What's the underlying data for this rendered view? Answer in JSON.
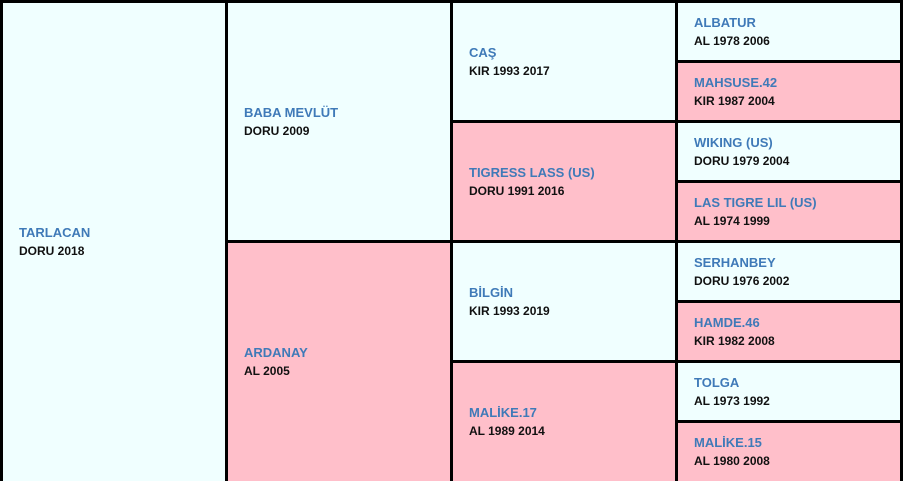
{
  "horse": {
    "name": "TARLACAN",
    "info": "DORU 2018"
  },
  "parents": [
    {
      "name": "BABA MEVLÜT",
      "info": "DORU 2009"
    },
    {
      "name": "ARDANAY",
      "info": "AL 2005"
    }
  ],
  "grandparents": [
    {
      "name": "CAŞ",
      "info": "KIR 1993 2017"
    },
    {
      "name": "TIGRESS LASS (US)",
      "info": "DORU 1991 2016"
    },
    {
      "name": "BİLGİN",
      "info": "KIR 1993 2019"
    },
    {
      "name": "MALİKE.17",
      "info": "AL 1989 2014"
    }
  ],
  "great_grandparents": [
    {
      "name": "ALBATUR",
      "info": "AL 1978 2006"
    },
    {
      "name": "MAHSUSE.42",
      "info": "KIR 1987 2004"
    },
    {
      "name": "WIKING (US)",
      "info": "DORU 1979 2004"
    },
    {
      "name": "LAS TIGRE LIL (US)",
      "info": "AL 1974 1999"
    },
    {
      "name": "SERHANBEY",
      "info": "DORU 1976 2002"
    },
    {
      "name": "HAMDE.46",
      "info": "KIR 1982 2008"
    },
    {
      "name": "TOLGA",
      "info": "AL 1973 1992"
    },
    {
      "name": "MALİKE.15",
      "info": "AL 1980 2008"
    }
  ],
  "colors": {
    "male_bg": "#f0ffff",
    "female_bg": "#ffbfca",
    "name_text": "#3f7ab8",
    "border": "#000000"
  }
}
